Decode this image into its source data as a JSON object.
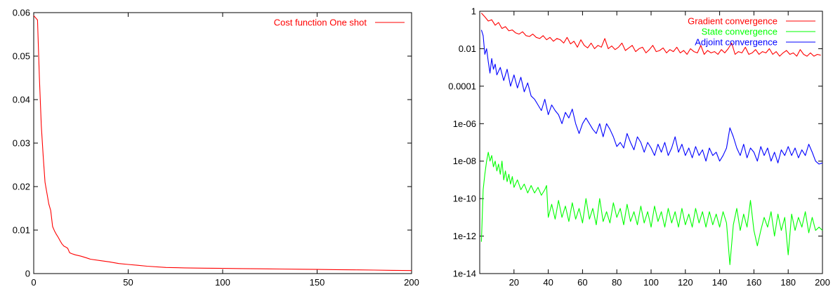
{
  "chart_data": [
    {
      "type": "line",
      "title": "",
      "xlabel": "",
      "ylabel": "",
      "xlim": [
        0,
        200
      ],
      "ylim": [
        0,
        0.06
      ],
      "x_ticks": [
        "0",
        "50",
        "100",
        "150",
        "200"
      ],
      "x_tick_values": [
        0,
        50,
        100,
        150,
        200
      ],
      "y_ticks": [
        "0",
        "0.01",
        "0.02",
        "0.03",
        "0.04",
        "0.05",
        "0.06"
      ],
      "y_tick_values": [
        0,
        0.01,
        0.02,
        0.03,
        0.04,
        0.05,
        0.06
      ],
      "grid": false,
      "legend_position": "top-right",
      "series": [
        {
          "name": "Cost function  One shot",
          "color": "#ff0000",
          "x": [
            0,
            1,
            2,
            3,
            4,
            5,
            6,
            7,
            8,
            9,
            10,
            11,
            12,
            13,
            14,
            15,
            16,
            17,
            18,
            19,
            20,
            22,
            25,
            28,
            30,
            35,
            40,
            45,
            50,
            55,
            60,
            70,
            80,
            90,
            100,
            110,
            120,
            130,
            140,
            150,
            160,
            170,
            180,
            190,
            200
          ],
          "y": [
            0.0593,
            0.0588,
            0.0583,
            0.045,
            0.034,
            0.027,
            0.021,
            0.0185,
            0.016,
            0.0145,
            0.0108,
            0.0098,
            0.009,
            0.0083,
            0.0075,
            0.0068,
            0.0063,
            0.0061,
            0.0058,
            0.0048,
            0.0046,
            0.0043,
            0.004,
            0.0036,
            0.0033,
            0.003,
            0.0027,
            0.0023,
            0.0021,
            0.0019,
            0.0017,
            0.0014,
            0.0013,
            0.00125,
            0.0012,
            0.00115,
            0.0011,
            0.00105,
            0.001,
            0.00095,
            0.0009,
            0.00085,
            0.0008,
            0.00075,
            0.0007
          ]
        }
      ]
    },
    {
      "type": "line",
      "title": "",
      "xlabel": "",
      "ylabel": "",
      "scale_y": "log",
      "xlim": [
        0,
        200
      ],
      "ylim": [
        1e-14,
        1
      ],
      "x_ticks": [
        "20",
        "40",
        "60",
        "80",
        "100",
        "120",
        "140",
        "160",
        "180",
        "200"
      ],
      "x_tick_values": [
        20,
        40,
        60,
        80,
        100,
        120,
        140,
        160,
        180,
        200
      ],
      "y_ticks": [
        "1",
        "0.01",
        "0.0001",
        "1e-06",
        "1e-08",
        "1e-10",
        "1e-12",
        "1e-14"
      ],
      "y_tick_values": [
        1,
        0.01,
        0.0001,
        1e-06,
        1e-08,
        1e-10,
        1e-12,
        1e-14
      ],
      "grid": false,
      "legend_position": "top-right",
      "series": [
        {
          "name": "Gradient convergence",
          "color": "#ff0000",
          "x": [
            1,
            3,
            5,
            7,
            9,
            11,
            13,
            15,
            17,
            19,
            21,
            23,
            25,
            27,
            29,
            31,
            33,
            35,
            37,
            39,
            41,
            43,
            45,
            47,
            49,
            51,
            53,
            55,
            57,
            59,
            61,
            63,
            65,
            67,
            69,
            71,
            73,
            75,
            77,
            79,
            81,
            83,
            85,
            87,
            89,
            91,
            93,
            95,
            97,
            99,
            101,
            103,
            105,
            107,
            109,
            111,
            113,
            115,
            117,
            119,
            121,
            123,
            125,
            127,
            129,
            131,
            133,
            135,
            137,
            139,
            141,
            143,
            145,
            147,
            149,
            151,
            153,
            155,
            157,
            159,
            161,
            163,
            165,
            167,
            169,
            171,
            173,
            175,
            177,
            179,
            181,
            183,
            185,
            187,
            189,
            191,
            193,
            195,
            197,
            199
          ],
          "y": [
            0.8,
            0.5,
            0.3,
            0.35,
            0.18,
            0.25,
            0.12,
            0.15,
            0.09,
            0.1,
            0.07,
            0.06,
            0.08,
            0.05,
            0.045,
            0.06,
            0.04,
            0.035,
            0.05,
            0.03,
            0.04,
            0.025,
            0.035,
            0.03,
            0.02,
            0.04,
            0.018,
            0.025,
            0.012,
            0.03,
            0.015,
            0.011,
            0.02,
            0.01,
            0.015,
            0.012,
            0.035,
            0.01,
            0.014,
            0.009,
            0.012,
            0.02,
            0.008,
            0.011,
            0.015,
            0.007,
            0.01,
            0.012,
            0.006,
            0.009,
            0.015,
            0.007,
            0.008,
            0.011,
            0.006,
            0.009,
            0.007,
            0.012,
            0.006,
            0.008,
            0.005,
            0.01,
            0.007,
            0.006,
            0.015,
            0.005,
            0.008,
            0.006,
            0.007,
            0.005,
            0.009,
            0.006,
            0.01,
            0.02,
            0.005,
            0.007,
            0.006,
            0.012,
            0.005,
            0.006,
            0.009,
            0.005,
            0.007,
            0.006,
            0.01,
            0.005,
            0.007,
            0.004,
            0.006,
            0.008,
            0.005,
            0.006,
            0.004,
            0.009,
            0.005,
            0.004,
            0.006,
            0.004,
            0.005,
            0.0045
          ]
        },
        {
          "name": "State convergence",
          "color": "#00ff00",
          "x": [
            1,
            2,
            3,
            4,
            5,
            6,
            7,
            8,
            9,
            10,
            11,
            12,
            13,
            14,
            15,
            16,
            17,
            18,
            19,
            20,
            22,
            24,
            26,
            28,
            30,
            32,
            34,
            36,
            38,
            39,
            40,
            42,
            44,
            46,
            48,
            50,
            52,
            54,
            56,
            58,
            60,
            62,
            64,
            66,
            68,
            70,
            72,
            74,
            76,
            78,
            80,
            82,
            84,
            86,
            88,
            90,
            92,
            94,
            96,
            98,
            100,
            102,
            104,
            106,
            108,
            110,
            112,
            114,
            116,
            118,
            120,
            122,
            124,
            126,
            128,
            130,
            132,
            134,
            136,
            138,
            140,
            142,
            144,
            146,
            148,
            150,
            152,
            154,
            156,
            158,
            160,
            162,
            164,
            166,
            168,
            170,
            172,
            174,
            176,
            178,
            180,
            182,
            184,
            186,
            188,
            190,
            192,
            194,
            196,
            198,
            200
          ],
          "y": [
            5e-13,
            3e-10,
            2e-09,
            1e-08,
            3e-08,
            1e-08,
            2e-08,
            5e-09,
            1e-08,
            3e-09,
            7e-09,
            2e-09,
            1e-08,
            1e-09,
            3e-09,
            8e-10,
            2e-09,
            6e-10,
            1.5e-09,
            4e-10,
            1e-09,
            3e-10,
            6e-10,
            2e-10,
            5e-10,
            2e-10,
            4e-10,
            1.5e-10,
            3e-10,
            5e-10,
            1e-11,
            5e-11,
            8e-12,
            8e-11,
            1e-11,
            4e-11,
            6e-12,
            6e-11,
            8e-12,
            3e-11,
            5e-12,
            1e-10,
            8e-12,
            3e-11,
            4e-12,
            1e-10,
            6e-12,
            2e-11,
            5e-12,
            6e-11,
            1e-11,
            3e-11,
            4e-12,
            5e-11,
            6e-12,
            2e-11,
            4e-12,
            4e-11,
            5e-12,
            2e-11,
            3e-12,
            4e-11,
            6e-12,
            2e-11,
            3e-12,
            3e-11,
            5e-12,
            2e-11,
            3e-12,
            3e-11,
            4e-12,
            1.5e-11,
            3e-12,
            3e-11,
            5e-12,
            2e-11,
            3e-12,
            2e-11,
            4e-12,
            1.5e-11,
            3e-12,
            2e-11,
            5e-12,
            3e-14,
            4e-12,
            3e-11,
            2e-12,
            1.5e-11,
            3e-12,
            8e-11,
            2e-12,
            3e-13,
            2e-12,
            1e-11,
            3e-12,
            2e-11,
            1e-12,
            1.5e-11,
            2e-12,
            1e-11,
            1e-13,
            1.5e-11,
            2e-12,
            1e-11,
            3e-12,
            2e-11,
            1.5e-12,
            1e-11,
            2e-12,
            3e-12,
            2e-12
          ]
        },
        {
          "name": "Adjoint convergence",
          "color": "#0000ff",
          "x": [
            1,
            2,
            3,
            4,
            5,
            6,
            7,
            8,
            9,
            10,
            12,
            14,
            16,
            18,
            20,
            22,
            24,
            26,
            28,
            30,
            32,
            34,
            36,
            38,
            40,
            42,
            44,
            46,
            48,
            50,
            52,
            54,
            56,
            58,
            60,
            62,
            64,
            66,
            68,
            70,
            72,
            74,
            76,
            78,
            80,
            82,
            84,
            86,
            88,
            90,
            92,
            94,
            96,
            98,
            100,
            102,
            104,
            106,
            108,
            110,
            112,
            114,
            116,
            118,
            120,
            122,
            124,
            126,
            128,
            130,
            132,
            134,
            136,
            138,
            140,
            142,
            144,
            146,
            148,
            150,
            152,
            154,
            156,
            158,
            160,
            162,
            164,
            166,
            168,
            170,
            172,
            174,
            176,
            178,
            180,
            182,
            184,
            186,
            188,
            190,
            192,
            194,
            196,
            198,
            200
          ],
          "y": [
            0.1,
            0.05,
            0.005,
            0.01,
            0.002,
            0.0005,
            0.003,
            0.0008,
            0.0015,
            0.0004,
            0.001,
            0.0002,
            0.0008,
            0.0001,
            0.0004,
            8e-05,
            0.0003,
            5e-05,
            0.00015,
            3e-05,
            2e-05,
            1e-05,
            5e-06,
            2e-05,
            3e-06,
            1e-05,
            5e-06,
            3e-06,
            1e-06,
            4e-06,
            2e-06,
            6e-06,
            1e-06,
            3e-07,
            1e-06,
            2e-06,
            1e-06,
            5e-07,
            3e-07,
            1e-06,
            2e-07,
            1e-06,
            5e-07,
            2e-07,
            6e-08,
            1e-07,
            5e-08,
            3e-07,
            1e-07,
            4e-08,
            2e-07,
            1e-07,
            3e-08,
            1e-07,
            5e-08,
            2e-08,
            8e-08,
            3e-08,
            1e-07,
            2e-08,
            5e-08,
            2e-07,
            3e-08,
            8e-08,
            2e-08,
            5e-08,
            1.5e-08,
            6e-08,
            2e-08,
            4e-08,
            1e-08,
            5e-08,
            2e-08,
            3e-08,
            1e-08,
            2e-08,
            5e-08,
            6e-07,
            2e-07,
            5e-08,
            2e-08,
            8e-08,
            1.5e-08,
            5e-08,
            3e-08,
            1e-08,
            6e-08,
            2e-08,
            5e-08,
            1e-08,
            3e-08,
            8e-09,
            4e-08,
            2e-08,
            6e-08,
            2e-08,
            5e-08,
            1.5e-08,
            4e-08,
            2e-08,
            8e-08,
            3e-08,
            1e-08,
            7e-09,
            8e-09
          ]
        }
      ]
    }
  ]
}
